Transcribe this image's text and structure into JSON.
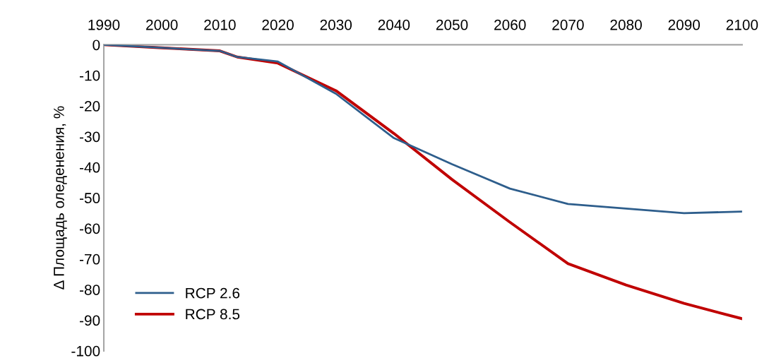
{
  "chart_data": {
    "type": "line",
    "ylabel": "Δ Площадь оледенения, %",
    "x": [
      1990,
      2000,
      2010,
      2013,
      2020,
      2030,
      2040,
      2050,
      2060,
      2070,
      2080,
      2090,
      2100
    ],
    "series": [
      {
        "name": "RCP 2.6",
        "color": "#2e5e8c",
        "values": [
          0,
          -1,
          -2,
          -4,
          -5.5,
          -16,
          -30.5,
          -39,
          -47,
          -52,
          -53.5,
          -55,
          -54.5
        ]
      },
      {
        "name": "RCP 8.5",
        "color": "#c00000",
        "values": [
          0,
          -1,
          -2,
          -4,
          -6,
          -15,
          -29,
          -44,
          -58,
          -71.5,
          -78.5,
          -84.5,
          -89.5
        ]
      }
    ],
    "xlim": [
      1990,
      2100
    ],
    "xticks": [
      1990,
      2000,
      2010,
      2020,
      2030,
      2040,
      2050,
      2060,
      2070,
      2080,
      2090,
      2100
    ],
    "ylim": [
      -100,
      0
    ],
    "yticks": [
      0,
      -10,
      -20,
      -30,
      -40,
      -50,
      -60,
      -70,
      -80,
      -90,
      -100
    ],
    "grid": false,
    "legend": "bottom left",
    "marker": "none",
    "line_style": "solid"
  }
}
